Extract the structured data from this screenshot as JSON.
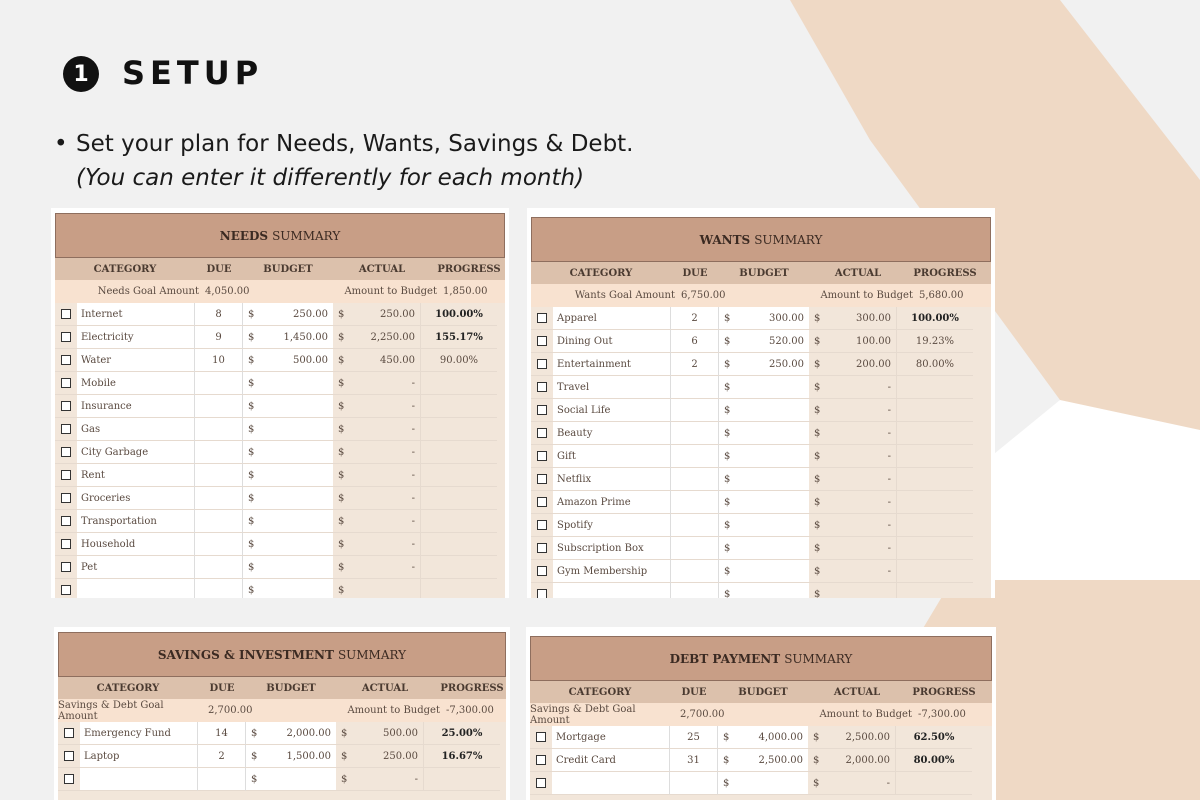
{
  "colors": {
    "background": "#f1f1f1",
    "accent_band": "#efd9c5",
    "header_brown": "#c89e86",
    "highlight_red": "#c4161c"
  },
  "step": {
    "number": "1",
    "title": "SETUP"
  },
  "bullet_text": "Set your plan for Needs, Wants, Savings & Debt.",
  "note_text": "(You can enter it differently for each month)",
  "columns": {
    "category": "CATEGORY",
    "due": "DUE",
    "budget": "BUDGET",
    "actual": "ACTUAL",
    "progress": "PROGRESS"
  },
  "currency": "$",
  "amount_to_budget_label": "Amount to Budget",
  "needs": {
    "title_bold": "NEEDS",
    "title_rest": "SUMMARY",
    "goal_label": "Needs Goal Amount",
    "goal_value": "4,050.00",
    "amount_to_budget": "1,850.00",
    "rows": [
      {
        "category": "Internet",
        "due": "8",
        "budget": "250.00",
        "actual": "250.00",
        "progress": "100.00%",
        "bold": true
      },
      {
        "category": "Electricity",
        "due": "9",
        "budget": "1,450.00",
        "actual": "2,250.00",
        "progress": "155.17%",
        "bold": true
      },
      {
        "category": "Water",
        "due": "10",
        "budget": "500.00",
        "actual": "450.00",
        "progress": "90.00%",
        "bold": false
      },
      {
        "category": "Mobile",
        "due": "",
        "budget": "",
        "actual": "-",
        "progress": ""
      },
      {
        "category": "Insurance",
        "due": "",
        "budget": "",
        "actual": "-",
        "progress": ""
      },
      {
        "category": "Gas",
        "due": "",
        "budget": "",
        "actual": "-",
        "progress": ""
      },
      {
        "category": "City Garbage",
        "due": "",
        "budget": "",
        "actual": "-",
        "progress": ""
      },
      {
        "category": "Rent",
        "due": "",
        "budget": "",
        "actual": "-",
        "progress": ""
      },
      {
        "category": "Groceries",
        "due": "",
        "budget": "",
        "actual": "-",
        "progress": ""
      },
      {
        "category": "Transportation",
        "due": "",
        "budget": "",
        "actual": "-",
        "progress": ""
      },
      {
        "category": "Household",
        "due": "",
        "budget": "",
        "actual": "-",
        "progress": ""
      },
      {
        "category": "Pet",
        "due": "",
        "budget": "",
        "actual": "-",
        "progress": ""
      },
      {
        "category": "",
        "due": "",
        "budget": "",
        "actual": "",
        "progress": ""
      }
    ]
  },
  "wants": {
    "title_bold": "WANTS",
    "title_rest": "SUMMARY",
    "goal_label": "Wants Goal Amount",
    "goal_value": "6,750.00",
    "amount_to_budget": "5,680.00",
    "rows": [
      {
        "category": "Apparel",
        "due": "2",
        "budget": "300.00",
        "actual": "300.00",
        "progress": "100.00%",
        "bold": true
      },
      {
        "category": "Dining Out",
        "due": "6",
        "budget": "520.00",
        "actual": "100.00",
        "progress": "19.23%",
        "bold": false
      },
      {
        "category": "Entertainment",
        "due": "2",
        "budget": "250.00",
        "actual": "200.00",
        "progress": "80.00%",
        "bold": false
      },
      {
        "category": "Travel",
        "due": "",
        "budget": "",
        "actual": "-",
        "progress": ""
      },
      {
        "category": "Social Life",
        "due": "",
        "budget": "",
        "actual": "-",
        "progress": ""
      },
      {
        "category": "Beauty",
        "due": "",
        "budget": "",
        "actual": "-",
        "progress": ""
      },
      {
        "category": "Gift",
        "due": "",
        "budget": "",
        "actual": "-",
        "progress": ""
      },
      {
        "category": "Netflix",
        "due": "",
        "budget": "",
        "actual": "-",
        "progress": ""
      },
      {
        "category": "Amazon Prime",
        "due": "",
        "budget": "",
        "actual": "-",
        "progress": ""
      },
      {
        "category": "Spotify",
        "due": "",
        "budget": "",
        "actual": "-",
        "progress": ""
      },
      {
        "category": "Subscription Box",
        "due": "",
        "budget": "",
        "actual": "-",
        "progress": ""
      },
      {
        "category": "Gym Membership",
        "due": "",
        "budget": "",
        "actual": "-",
        "progress": ""
      },
      {
        "category": "",
        "due": "",
        "budget": "",
        "actual": "",
        "progress": ""
      }
    ]
  },
  "savings": {
    "title_bold": "SAVINGS & INVESTMENT",
    "title_rest": "SUMMARY",
    "goal_label": "Savings & Debt Goal Amount",
    "goal_value": "2,700.00",
    "amount_to_budget": "-7,300.00",
    "rows": [
      {
        "category": "Emergency Fund",
        "due": "14",
        "budget": "2,000.00",
        "actual": "500.00",
        "progress": "25.00%",
        "bold": true
      },
      {
        "category": "Laptop",
        "due": "2",
        "budget": "1,500.00",
        "actual": "250.00",
        "progress": "16.67%",
        "bold": true
      },
      {
        "category": "",
        "due": "",
        "budget": "",
        "actual": "-",
        "progress": ""
      }
    ]
  },
  "debt": {
    "title_bold": "DEBT PAYMENT",
    "title_rest": "SUMMARY",
    "goal_label": "Savings & Debt Goal Amount",
    "goal_value": "2,700.00",
    "amount_to_budget": "-7,300.00",
    "rows": [
      {
        "category": "Mortgage",
        "due": "25",
        "budget": "4,000.00",
        "actual": "2,500.00",
        "progress": "62.50%",
        "bold": true
      },
      {
        "category": "Credit Card",
        "due": "31",
        "budget": "2,500.00",
        "actual": "2,000.00",
        "progress": "80.00%",
        "bold": true
      },
      {
        "category": "",
        "due": "",
        "budget": "",
        "actual": "-",
        "progress": ""
      }
    ]
  }
}
